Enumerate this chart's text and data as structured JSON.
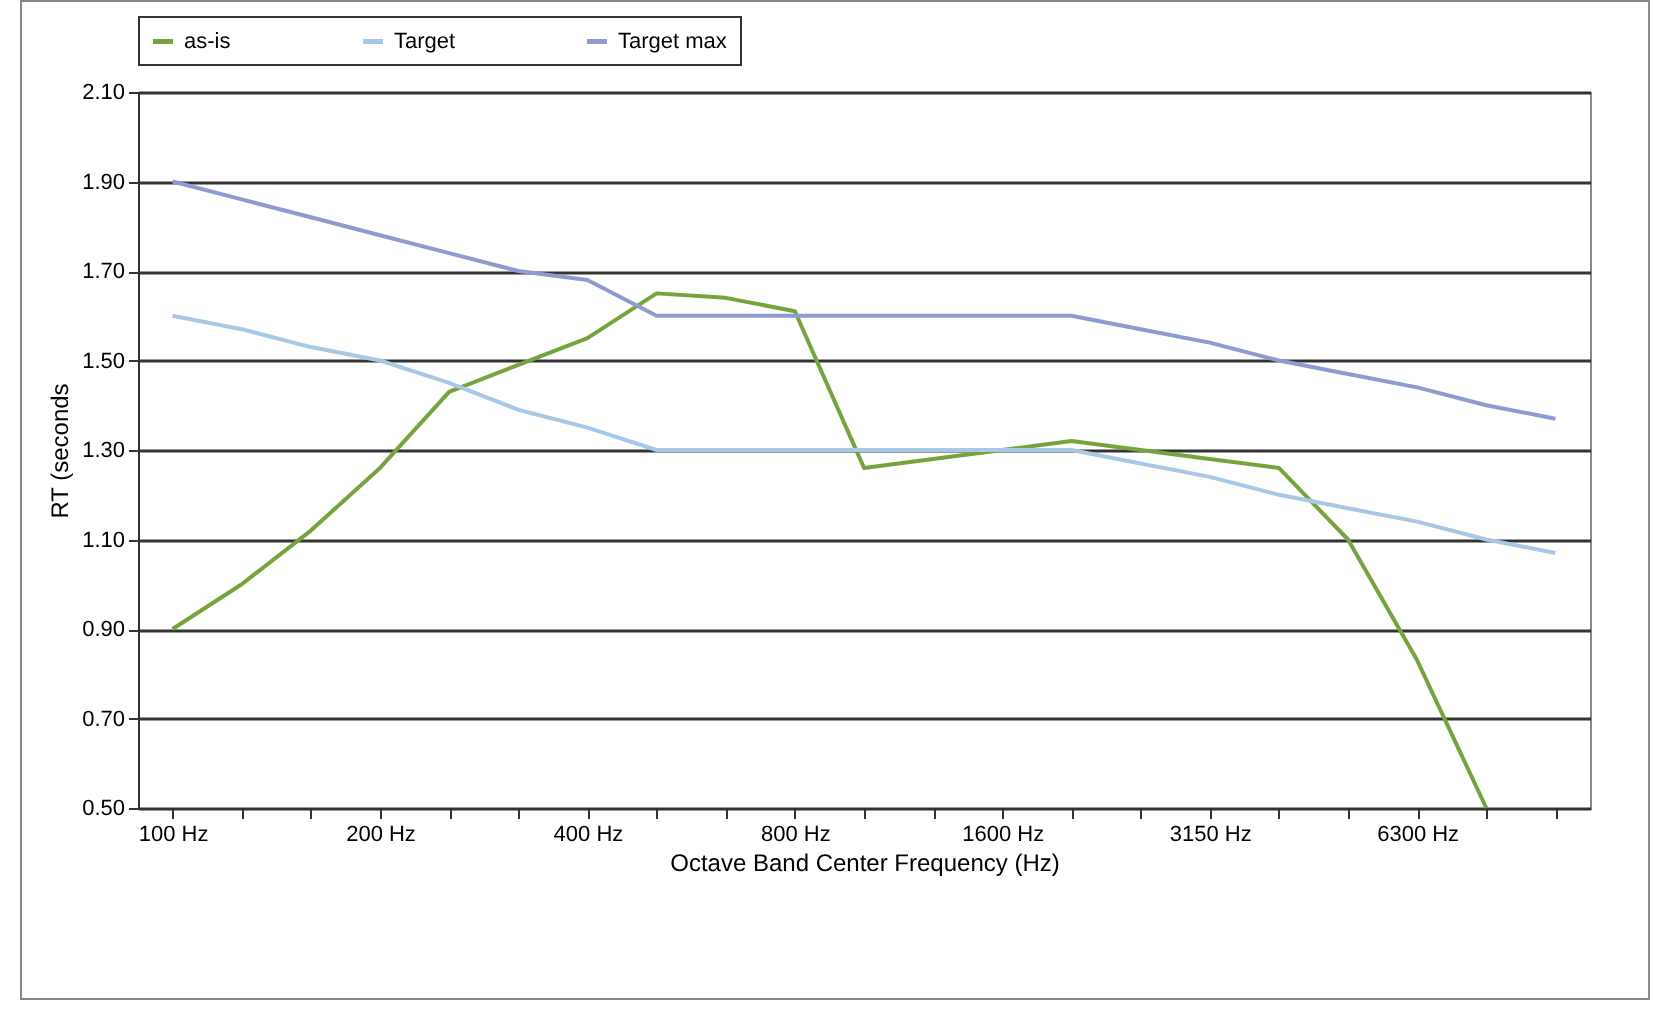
{
  "chart_data": {
    "type": "line",
    "xlabel": "Octave Band Center Frequency (Hz)",
    "ylabel": "RT (seconds",
    "categories": [
      "100 Hz",
      null,
      null,
      "200 Hz",
      null,
      null,
      "400 Hz",
      null,
      null,
      "800 Hz",
      null,
      null,
      "1600 Hz",
      null,
      null,
      "3150 Hz",
      null,
      null,
      "6300 Hz",
      null,
      null
    ],
    "series": [
      {
        "name": "as-is",
        "color": "#77a33e",
        "values": [
          0.9,
          1.0,
          1.12,
          1.26,
          1.43,
          1.49,
          1.55,
          1.65,
          1.64,
          1.61,
          1.26,
          1.28,
          1.3,
          1.32,
          1.3,
          1.28,
          1.26,
          1.1,
          0.83,
          0.5,
          null
        ]
      },
      {
        "name": "Target",
        "color": "#a8c8e8",
        "values": [
          1.6,
          1.57,
          1.53,
          1.5,
          1.45,
          1.39,
          1.35,
          1.3,
          1.3,
          1.3,
          1.3,
          1.3,
          1.3,
          1.3,
          1.27,
          1.24,
          1.2,
          1.17,
          1.14,
          1.1,
          1.07
        ]
      },
      {
        "name": "Target max",
        "color": "#8e9bd0",
        "values": [
          1.9,
          1.86,
          1.82,
          1.78,
          1.74,
          1.7,
          1.68,
          1.6,
          1.6,
          1.6,
          1.6,
          1.6,
          1.6,
          1.6,
          1.57,
          1.54,
          1.5,
          1.47,
          1.44,
          1.4,
          1.37
        ]
      }
    ],
    "ylim": [
      0.5,
      2.1
    ],
    "yticks": [
      {
        "value": 0.5,
        "label": "0.50"
      },
      {
        "value": 0.7,
        "label": "0.70"
      },
      {
        "value": 0.9,
        "label": "0.90"
      },
      {
        "value": 1.1,
        "label": "1.10"
      },
      {
        "value": 1.3,
        "label": "1.30"
      },
      {
        "value": 1.5,
        "label": "1.50"
      },
      {
        "value": 1.7,
        "label": "1.70"
      },
      {
        "value": 1.9,
        "label": "1.90"
      },
      {
        "value": 2.1,
        "label": "2.10"
      }
    ],
    "grid": "y",
    "legend": "top",
    "marker": "none",
    "line_style": "solid"
  }
}
